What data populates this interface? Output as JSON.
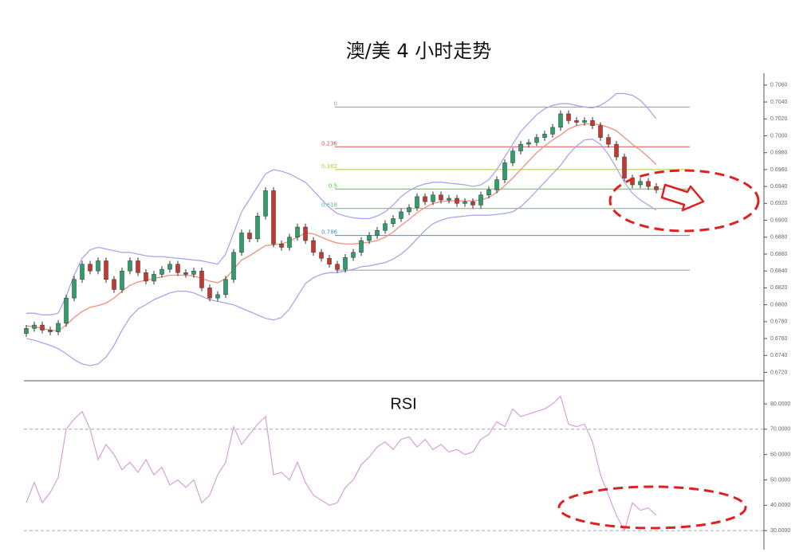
{
  "chart_data": [
    {
      "type": "candlestick",
      "title": "澳/美 4 小时走势",
      "up_color": "#2e9e6a",
      "down_color": "#c8372d",
      "open": [
        0.6766,
        0.6772,
        0.6776,
        0.677,
        0.6768,
        0.6778,
        0.6808,
        0.683,
        0.6848,
        0.684,
        0.6852,
        0.683,
        0.6818,
        0.684,
        0.6852,
        0.6838,
        0.6828,
        0.6836,
        0.6842,
        0.6848,
        0.6838,
        0.6836,
        0.684,
        0.682,
        0.6808,
        0.6812,
        0.683,
        0.6862,
        0.6885,
        0.6878,
        0.6905,
        0.6935,
        0.6872,
        0.6868,
        0.688,
        0.6892,
        0.6876,
        0.6862,
        0.6855,
        0.6848,
        0.6842,
        0.6856,
        0.6862,
        0.6876,
        0.6882,
        0.6888,
        0.6896,
        0.6902,
        0.691,
        0.6915,
        0.6928,
        0.6922,
        0.693,
        0.6924,
        0.6926,
        0.692,
        0.6922,
        0.6918,
        0.693,
        0.6936,
        0.6948,
        0.6968,
        0.6982,
        0.699,
        0.6992,
        0.6998,
        0.7002,
        0.701,
        0.7026,
        0.7018,
        0.7016,
        0.7018,
        0.7012,
        0.6998,
        0.699,
        0.6975,
        0.695,
        0.6942,
        0.6946,
        0.694
      ],
      "high": [
        0.6776,
        0.678,
        0.678,
        0.6774,
        0.6782,
        0.6812,
        0.6834,
        0.6852,
        0.6852,
        0.6856,
        0.6856,
        0.6834,
        0.6844,
        0.6856,
        0.6856,
        0.6842,
        0.684,
        0.6846,
        0.6852,
        0.6852,
        0.6842,
        0.6844,
        0.6844,
        0.6824,
        0.6816,
        0.6834,
        0.6866,
        0.6889,
        0.6889,
        0.6909,
        0.6939,
        0.6939,
        0.6876,
        0.6884,
        0.6896,
        0.6896,
        0.688,
        0.6866,
        0.6859,
        0.6852,
        0.686,
        0.6866,
        0.688,
        0.6886,
        0.6892,
        0.69,
        0.6906,
        0.6914,
        0.6919,
        0.6932,
        0.6932,
        0.6934,
        0.6934,
        0.693,
        0.693,
        0.6926,
        0.6926,
        0.6934,
        0.694,
        0.6952,
        0.6972,
        0.6986,
        0.6994,
        0.6996,
        0.7002,
        0.7006,
        0.7014,
        0.703,
        0.703,
        0.7022,
        0.7022,
        0.7022,
        0.7016,
        0.7002,
        0.6994,
        0.6979,
        0.6954,
        0.695,
        0.695,
        0.6944
      ],
      "low": [
        0.6762,
        0.6768,
        0.6766,
        0.6764,
        0.6764,
        0.6774,
        0.6804,
        0.6826,
        0.6836,
        0.6836,
        0.6826,
        0.6814,
        0.6814,
        0.6836,
        0.6834,
        0.6824,
        0.6824,
        0.6832,
        0.6838,
        0.6834,
        0.6832,
        0.6832,
        0.6816,
        0.6804,
        0.6804,
        0.6808,
        0.6826,
        0.6858,
        0.6874,
        0.6874,
        0.6901,
        0.6868,
        0.6864,
        0.6864,
        0.6876,
        0.6872,
        0.6858,
        0.6851,
        0.6844,
        0.6838,
        0.6838,
        0.6852,
        0.6858,
        0.6872,
        0.6878,
        0.6884,
        0.6892,
        0.6898,
        0.6906,
        0.6911,
        0.6918,
        0.6918,
        0.692,
        0.692,
        0.6916,
        0.6916,
        0.6914,
        0.6914,
        0.6926,
        0.6932,
        0.6944,
        0.6964,
        0.6978,
        0.6986,
        0.6988,
        0.6994,
        0.6998,
        0.7006,
        0.7014,
        0.7012,
        0.7012,
        0.7008,
        0.6994,
        0.6986,
        0.6971,
        0.6946,
        0.6938,
        0.6938,
        0.6936,
        0.6932
      ],
      "close": [
        0.6772,
        0.6776,
        0.677,
        0.6768,
        0.6778,
        0.6808,
        0.683,
        0.6848,
        0.684,
        0.6852,
        0.683,
        0.6818,
        0.684,
        0.6852,
        0.6838,
        0.6828,
        0.6836,
        0.6842,
        0.6848,
        0.6838,
        0.6836,
        0.684,
        0.682,
        0.6808,
        0.6812,
        0.683,
        0.6862,
        0.6885,
        0.6878,
        0.6905,
        0.6935,
        0.6872,
        0.6868,
        0.688,
        0.6892,
        0.6876,
        0.6862,
        0.6855,
        0.6848,
        0.6842,
        0.6856,
        0.6862,
        0.6876,
        0.6882,
        0.6888,
        0.6896,
        0.6902,
        0.691,
        0.6915,
        0.6928,
        0.6922,
        0.693,
        0.6924,
        0.6926,
        0.692,
        0.6922,
        0.6918,
        0.693,
        0.6936,
        0.6948,
        0.6968,
        0.6982,
        0.699,
        0.6992,
        0.6998,
        0.7002,
        0.701,
        0.7026,
        0.7018,
        0.7016,
        0.7018,
        0.7012,
        0.6998,
        0.699,
        0.6975,
        0.695,
        0.6942,
        0.6946,
        0.694,
        0.6936
      ],
      "bands": {
        "upper": [
          0.679,
          0.679,
          0.6788,
          0.6788,
          0.679,
          0.681,
          0.6835,
          0.6855,
          0.6865,
          0.6868,
          0.6866,
          0.6864,
          0.6862,
          0.6862,
          0.686,
          0.6858,
          0.6857,
          0.6857,
          0.6856,
          0.6855,
          0.6854,
          0.6853,
          0.6852,
          0.685,
          0.6848,
          0.686,
          0.6885,
          0.691,
          0.6925,
          0.694,
          0.6955,
          0.696,
          0.6958,
          0.6955,
          0.695,
          0.6945,
          0.6935,
          0.6925,
          0.6915,
          0.6908,
          0.6905,
          0.6903,
          0.6902,
          0.6902,
          0.6905,
          0.691,
          0.6918,
          0.6928,
          0.6935,
          0.694,
          0.6943,
          0.6945,
          0.6945,
          0.6944,
          0.6943,
          0.6942,
          0.694,
          0.6942,
          0.6948,
          0.696,
          0.6975,
          0.699,
          0.7005,
          0.7015,
          0.7025,
          0.7032,
          0.7036,
          0.7038,
          0.7038,
          0.7036,
          0.7034,
          0.7033,
          0.7036,
          0.7042,
          0.705,
          0.705,
          0.7048,
          0.7042,
          0.7032,
          0.702
        ],
        "middle": [
          0.6775,
          0.6774,
          0.6772,
          0.677,
          0.6769,
          0.6776,
          0.6785,
          0.6792,
          0.6797,
          0.6799,
          0.6802,
          0.6808,
          0.6816,
          0.6823,
          0.6827,
          0.6829,
          0.6831,
          0.6833,
          0.6835,
          0.6835,
          0.6835,
          0.6834,
          0.6831,
          0.6828,
          0.6826,
          0.6831,
          0.6842,
          0.6853,
          0.6858,
          0.6864,
          0.687,
          0.6871,
          0.6872,
          0.6875,
          0.688,
          0.6885,
          0.6884,
          0.688,
          0.6876,
          0.6873,
          0.6872,
          0.6872,
          0.6873,
          0.6874,
          0.6876,
          0.688,
          0.6886,
          0.6894,
          0.6901,
          0.6909,
          0.6915,
          0.692,
          0.6922,
          0.6923,
          0.6923,
          0.6923,
          0.6923,
          0.6924,
          0.6927,
          0.6933,
          0.6941,
          0.695,
          0.696,
          0.697,
          0.698,
          0.6988,
          0.6995,
          0.7001,
          0.7008,
          0.7012,
          0.7014,
          0.7014,
          0.7013,
          0.701,
          0.7006,
          0.6998,
          0.699,
          0.6983,
          0.6975,
          0.6966
        ],
        "lower": [
          0.676,
          0.6758,
          0.6755,
          0.6752,
          0.6748,
          0.6742,
          0.6735,
          0.673,
          0.6728,
          0.673,
          0.6738,
          0.6752,
          0.677,
          0.6785,
          0.6795,
          0.68,
          0.6806,
          0.681,
          0.6814,
          0.6816,
          0.6816,
          0.6814,
          0.681,
          0.6806,
          0.6804,
          0.6802,
          0.68,
          0.6796,
          0.6792,
          0.6788,
          0.6784,
          0.6782,
          0.6785,
          0.6795,
          0.681,
          0.6825,
          0.6832,
          0.6836,
          0.6838,
          0.6838,
          0.684,
          0.6842,
          0.6845,
          0.6846,
          0.6848,
          0.685,
          0.6854,
          0.686,
          0.6868,
          0.6878,
          0.6888,
          0.6896,
          0.69,
          0.6903,
          0.6904,
          0.6905,
          0.6906,
          0.6906,
          0.6906,
          0.6907,
          0.6908,
          0.691,
          0.6916,
          0.6925,
          0.6935,
          0.6945,
          0.6955,
          0.6965,
          0.6978,
          0.6988,
          0.6995,
          0.6996,
          0.699,
          0.6978,
          0.6962,
          0.6945,
          0.6932,
          0.6924,
          0.6918,
          0.6912
        ]
      },
      "band_color": "#a9a6ee",
      "middle_color": "#f0907e",
      "fib_levels": [
        {
          "label": "0",
          "value": 0.7034,
          "color": "#9a9a9a"
        },
        {
          "label": "0.236",
          "value": 0.6987,
          "color": "#d9534f"
        },
        {
          "label": "0.382",
          "value": 0.696,
          "color": "#b5cc3c"
        },
        {
          "label": "0.5",
          "value": 0.6937,
          "color": "#5cbf4a"
        },
        {
          "label": "0.618",
          "value": 0.6914,
          "color": "#4cc28a"
        },
        {
          "label": "0.786",
          "value": 0.6882,
          "color": "#4a90c8"
        },
        {
          "value": 0.6841,
          "color": "#9a9a9a"
        }
      ],
      "ylim": [
        0.6711,
        0.7074
      ],
      "yticks": [
        {
          "value": 0.672,
          "label": "0.6720"
        },
        {
          "value": 0.674,
          "label": "0.6740"
        },
        {
          "value": 0.676,
          "label": "0.6760"
        },
        {
          "value": 0.678,
          "label": "0.6780"
        },
        {
          "value": 0.68,
          "label": "0.6800"
        },
        {
          "value": 0.682,
          "label": "0.6820"
        },
        {
          "value": 0.684,
          "label": "0.6840"
        },
        {
          "value": 0.686,
          "label": "0.6860"
        },
        {
          "value": 0.688,
          "label": "0.6880"
        },
        {
          "value": 0.69,
          "label": "0.6900"
        },
        {
          "value": 0.692,
          "label": "0.6920"
        },
        {
          "value": 0.694,
          "label": "0.6940"
        },
        {
          "value": 0.696,
          "label": "0.6960"
        },
        {
          "value": 0.698,
          "label": "0.6980"
        },
        {
          "value": 0.7,
          "label": "0.7000"
        },
        {
          "value": 0.702,
          "label": "0.7020"
        },
        {
          "value": 0.704,
          "label": "0.7040"
        },
        {
          "value": 0.706,
          "label": "0.7060"
        }
      ]
    },
    {
      "type": "line",
      "title": "RSI",
      "color": "#d8a0d8",
      "values": [
        41,
        49,
        41,
        45,
        51,
        70,
        74,
        77,
        70,
        58,
        64,
        60,
        54,
        57,
        53,
        58,
        52,
        55,
        48,
        50,
        47,
        50,
        41,
        44,
        52,
        57,
        71,
        64,
        68,
        72,
        75,
        52,
        53,
        50,
        57,
        49,
        44,
        42,
        40,
        41,
        47,
        50,
        56,
        59,
        63,
        65,
        62,
        66,
        67,
        63,
        66,
        62,
        64,
        61,
        62,
        60,
        61,
        66,
        68,
        73,
        71,
        78,
        75,
        76,
        77,
        78,
        80,
        83,
        72,
        71,
        72,
        65,
        52,
        44,
        36,
        30,
        41,
        38,
        39,
        36
      ],
      "ylim": [
        22.5,
        88.5
      ],
      "yticks": [
        {
          "value": 30,
          "label": "30.0000"
        },
        {
          "value": 40,
          "label": "40.0000"
        },
        {
          "value": 50,
          "label": "50.0000"
        },
        {
          "value": 60,
          "label": "60.0000"
        },
        {
          "value": 70,
          "label": "70.0000"
        },
        {
          "value": 80,
          "label": "80.0000"
        }
      ],
      "levels": [
        70,
        30
      ]
    }
  ]
}
